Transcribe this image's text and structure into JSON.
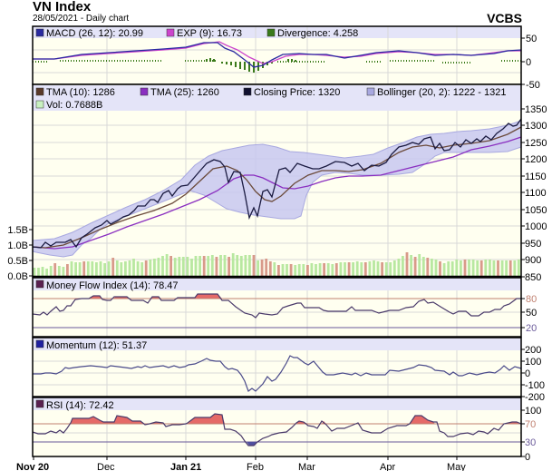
{
  "header": {
    "title": "VN Index",
    "subtitle": "28/05/2021 - Daily chart",
    "brand": "VCBS"
  },
  "colors": {
    "plot_bg": "#fffff0",
    "legend_bg": "#e4e4f8",
    "band_fill": "#c8c8f0",
    "close": "#1a1a40",
    "tma10": "#6b4a3a",
    "tma25": "#8a2fc0",
    "macd": "#2a2aa0",
    "exp": "#cc44cc",
    "divergence": "#3a7a1a",
    "vol_up": "#b8e8a0",
    "vol_down": "#d89a8a",
    "overbought_fill": "#e05050",
    "grid": "#d8d8d8"
  },
  "panels": {
    "macd": {
      "legend": [
        {
          "label": "MACD (26, 12): 20.99",
          "color": "#2a2aa0"
        },
        {
          "label": "EXP (9): 16.73",
          "color": "#cc44cc"
        },
        {
          "label": "Divergence: 4.258",
          "color": "#3a7a1a"
        }
      ],
      "yticks": [
        "50",
        "0",
        "-50"
      ]
    },
    "price": {
      "legend_row1": [
        {
          "label": "TMA (10): 1286",
          "color": "#5a3a2a"
        },
        {
          "label": "TMA (25): 1260",
          "color": "#8a2fc0"
        },
        {
          "label": "Closing Price: 1320",
          "color": "#101030"
        },
        {
          "label": "Bollinger (20, 2): 1222 - 1321",
          "color": "#a8a8e0"
        }
      ],
      "legend_row2": [
        {
          "label": "Vol: 0.7688B",
          "color": "#c8f0c0"
        }
      ],
      "yticks": [
        "1350",
        "1300",
        "1250",
        "1200",
        "1150",
        "1100",
        "1050",
        "1000",
        "950",
        "900",
        "850"
      ],
      "vol_ticks": [
        "1.5B",
        "1.0B",
        "0.5B",
        "0.0B"
      ]
    },
    "mfi": {
      "legend": [
        {
          "label": "Money Flow Index (14): 78.47",
          "color": "#5a2050"
        }
      ],
      "yticks": [
        "80",
        "50",
        "20"
      ]
    },
    "momentum": {
      "legend": [
        {
          "label": "Momentum (12): 51.37",
          "color": "#2020a0"
        }
      ],
      "yticks": [
        "200",
        "100",
        "0",
        "-100",
        "-200"
      ]
    },
    "rsi": {
      "legend": [
        {
          "label": "RSI (14): 72.42",
          "color": "#5a2050"
        }
      ],
      "yticks": [
        "100",
        "70",
        "30",
        "0"
      ]
    }
  },
  "xaxis": {
    "labels": [
      {
        "text": "Nov 20",
        "bold": true
      },
      {
        "text": "Dec",
        "bold": false
      },
      {
        "text": "Jan 21",
        "bold": true
      },
      {
        "text": "Feb",
        "bold": false
      },
      {
        "text": "Mar",
        "bold": false
      },
      {
        "text": "Apr",
        "bold": false
      },
      {
        "text": "May",
        "bold": false
      }
    ]
  },
  "chart_data": [
    {
      "type": "line",
      "title": "VN Index - MACD",
      "series": [
        {
          "name": "MACD (26, 12)",
          "last": 20.99,
          "values": [
            2,
            3,
            8,
            12,
            15,
            18,
            20,
            22,
            26,
            38,
            32,
            15,
            -5,
            -12,
            0,
            12,
            18,
            15,
            14,
            12,
            20,
            25,
            20,
            15,
            14,
            18,
            21
          ]
        },
        {
          "name": "EXP (9)",
          "last": 16.73,
          "values": [
            2,
            3,
            7,
            11,
            14,
            17,
            19,
            21,
            24,
            36,
            34,
            22,
            5,
            -5,
            -2,
            8,
            15,
            16,
            14,
            12,
            18,
            23,
            21,
            16,
            14,
            16,
            17
          ]
        },
        {
          "name": "Divergence",
          "last": 4.258
        }
      ],
      "ylim": [
        -50,
        50
      ]
    },
    {
      "type": "line",
      "title": "VN Index - Price",
      "categories": [
        "Nov 20",
        "Dec",
        "Jan 21",
        "Feb",
        "Mar",
        "Apr",
        "May"
      ],
      "series": [
        {
          "name": "Closing Price",
          "last": 1320,
          "values": [
            950,
            948,
            965,
            975,
            1000,
            1010,
            1020,
            1035,
            1045,
            1055,
            1060,
            1070,
            1080,
            1090,
            1095,
            1110,
            1135,
            1160,
            1175,
            1185,
            1165,
            1105,
            1025,
            1090,
            1085,
            1140,
            1175,
            1170,
            1180,
            1170,
            1185,
            1160,
            1185,
            1175,
            1210,
            1235,
            1240,
            1250,
            1225,
            1260,
            1255,
            1260,
            1280,
            1290,
            1300,
            1315,
            1320
          ]
        },
        {
          "name": "TMA (10)",
          "last": 1286
        },
        {
          "name": "TMA (25)",
          "last": 1260
        },
        {
          "name": "Bollinger (20, 2)",
          "lower": 1222,
          "upper": 1321
        },
        {
          "name": "Vol",
          "last": "0.7688B"
        }
      ],
      "ylim": [
        850,
        1350
      ]
    },
    {
      "type": "line",
      "title": "Money Flow Index (14)",
      "last": 78.47,
      "ylim": [
        0,
        100
      ],
      "reference_lines": [
        20,
        80
      ]
    },
    {
      "type": "line",
      "title": "Momentum (12)",
      "last": 51.37,
      "ylim": [
        -200,
        200
      ]
    },
    {
      "type": "line",
      "title": "RSI (14)",
      "last": 72.42,
      "ylim": [
        0,
        100
      ],
      "reference_lines": [
        30,
        70
      ]
    }
  ]
}
